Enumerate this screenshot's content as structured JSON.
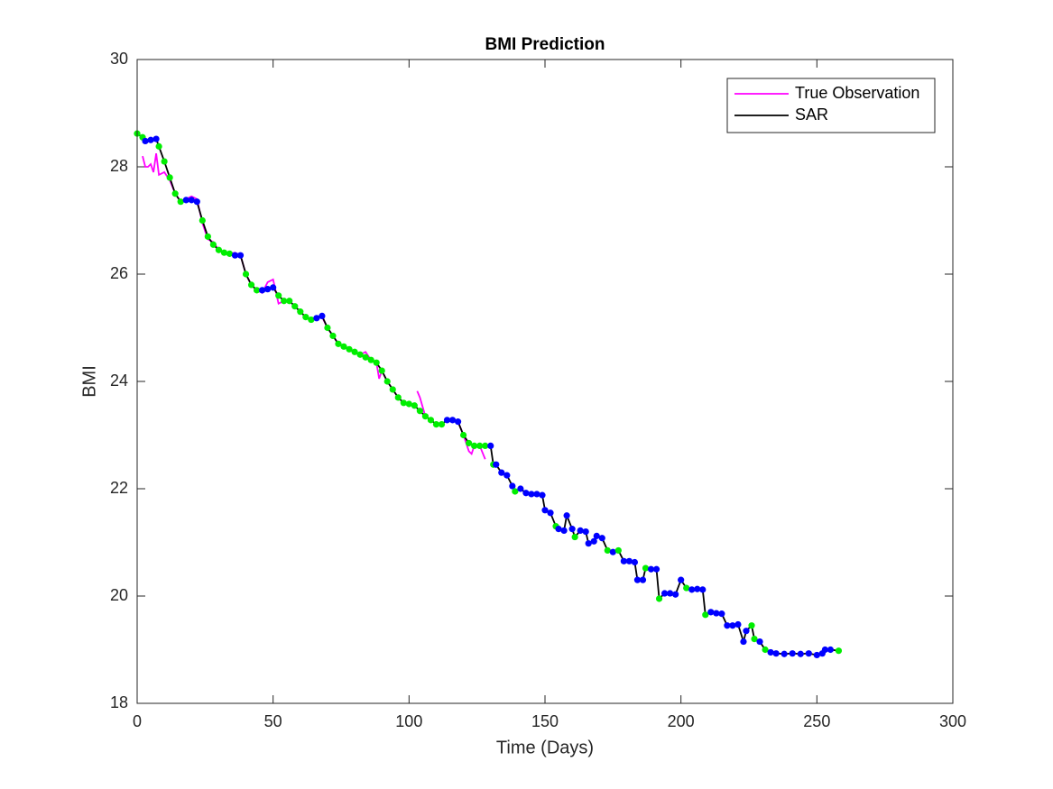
{
  "chart_data": {
    "type": "line",
    "title": "BMI Prediction",
    "xlabel": "Time (Days)",
    "ylabel": "BMI",
    "xlim": [
      0,
      300
    ],
    "xticks": [
      0,
      50,
      100,
      150,
      200,
      250,
      300
    ],
    "ylim": [
      18,
      30
    ],
    "yticks": [
      18,
      20,
      22,
      24,
      26,
      28,
      30
    ],
    "grid": false,
    "legend": "northeast",
    "series": [
      {
        "name": "True Observation",
        "color": "#ff00ff",
        "x": [
          2,
          3,
          4,
          5,
          6,
          7,
          8,
          10,
          12,
          14,
          16,
          18,
          20,
          22,
          24,
          26,
          28,
          30,
          32,
          34,
          36,
          38,
          40,
          42,
          44,
          46,
          48,
          50,
          52,
          54,
          56,
          58,
          60,
          62,
          64,
          66,
          68,
          70,
          72,
          74,
          76,
          78,
          80,
          82,
          84,
          86,
          88,
          89,
          90,
          92,
          94,
          96,
          98,
          100,
          102,
          103,
          104,
          106,
          108,
          110,
          112,
          114,
          116,
          118,
          120,
          122,
          123,
          124,
          126,
          128
        ],
        "values": [
          28.2,
          28.0,
          28.0,
          28.05,
          27.9,
          28.25,
          27.85,
          27.9,
          27.75,
          27.5,
          27.35,
          27.4,
          27.45,
          27.4,
          26.95,
          26.65,
          26.6,
          26.45,
          26.4,
          26.38,
          26.4,
          26.35,
          26.0,
          25.8,
          25.7,
          25.65,
          25.85,
          25.9,
          25.45,
          25.5,
          25.5,
          25.4,
          25.3,
          25.2,
          25.15,
          25.2,
          25.2,
          25.0,
          24.85,
          24.7,
          24.65,
          24.6,
          24.55,
          24.5,
          24.55,
          24.4,
          24.35,
          24.05,
          24.2,
          24.0,
          23.85,
          23.7,
          23.6,
          23.58,
          null,
          23.82,
          23.7,
          23.35,
          23.28,
          23.2,
          23.2,
          23.28,
          23.28,
          23.25,
          23.0,
          22.7,
          22.65,
          22.8,
          22.8,
          22.55
        ]
      },
      {
        "name": "SAR",
        "color": "#000000",
        "x": [
          0,
          2,
          3,
          5,
          7,
          8,
          10,
          12,
          14,
          16,
          18,
          20,
          22,
          24,
          26,
          28,
          30,
          32,
          34,
          36,
          38,
          40,
          42,
          44,
          46,
          48,
          50,
          52,
          54,
          56,
          58,
          60,
          62,
          64,
          66,
          68,
          70,
          72,
          74,
          76,
          78,
          80,
          82,
          84,
          86,
          88,
          90,
          92,
          94,
          96,
          98,
          100,
          102,
          104,
          106,
          108,
          110,
          112,
          114,
          116,
          118,
          120,
          122,
          124,
          126,
          128,
          130,
          131,
          132,
          134,
          136,
          138,
          139,
          141,
          143,
          145,
          147,
          149,
          150,
          152,
          154,
          155,
          157,
          158,
          160,
          161,
          163,
          165,
          166,
          168,
          169,
          171,
          173,
          175,
          177,
          179,
          181,
          183,
          184,
          186,
          187,
          189,
          191,
          192,
          194,
          196,
          198,
          200,
          202,
          204,
          206,
          208,
          209,
          211,
          213,
          215,
          217,
          219,
          221,
          223,
          224,
          226,
          227,
          229,
          231,
          233,
          235,
          238,
          241,
          244,
          247,
          250,
          252,
          253,
          255,
          258
        ],
        "values": [
          28.62,
          28.55,
          28.48,
          28.5,
          28.52,
          28.38,
          28.1,
          27.8,
          27.5,
          27.35,
          27.38,
          27.38,
          27.35,
          27.0,
          26.7,
          26.55,
          26.45,
          26.4,
          26.38,
          26.35,
          26.35,
          26.0,
          25.8,
          25.7,
          25.7,
          25.72,
          25.75,
          25.6,
          25.5,
          25.5,
          25.4,
          25.3,
          25.2,
          25.15,
          25.18,
          25.22,
          25.0,
          24.85,
          24.7,
          24.65,
          24.6,
          24.55,
          24.5,
          24.45,
          24.4,
          24.35,
          24.2,
          24.0,
          23.85,
          23.7,
          23.6,
          23.58,
          23.55,
          23.45,
          23.35,
          23.28,
          23.2,
          23.2,
          23.28,
          23.28,
          23.25,
          23.0,
          22.85,
          22.8,
          22.8,
          22.8,
          22.8,
          22.45,
          22.45,
          22.3,
          22.25,
          22.05,
          21.95,
          22.0,
          21.92,
          21.9,
          21.9,
          21.88,
          21.6,
          21.55,
          21.3,
          21.25,
          21.22,
          21.5,
          21.25,
          21.1,
          21.22,
          21.2,
          20.98,
          21.02,
          21.12,
          21.08,
          20.85,
          20.82,
          20.85,
          20.65,
          20.65,
          20.63,
          20.3,
          20.3,
          20.52,
          20.5,
          20.5,
          19.95,
          20.05,
          20.05,
          20.03,
          20.3,
          20.15,
          20.12,
          20.13,
          20.12,
          19.65,
          19.7,
          19.68,
          19.67,
          19.45,
          19.45,
          19.47,
          19.15,
          19.35,
          19.45,
          19.2,
          19.15,
          19.0,
          18.95,
          18.93,
          18.92,
          18.93,
          18.92,
          18.93,
          18.9,
          18.93,
          19.0,
          19.0,
          18.98
        ],
        "marker_colors": [
          "#00ee00",
          "#00ee00",
          "#0000ff",
          "#0000ff",
          "#0000ff",
          "#00ee00",
          "#00ee00",
          "#00ee00",
          "#00ee00",
          "#00ee00",
          "#0000ff",
          "#0000ff",
          "#0000ff",
          "#00ee00",
          "#00ee00",
          "#00ee00",
          "#00ee00",
          "#00ee00",
          "#00ee00",
          "#0000ff",
          "#0000ff",
          "#00ee00",
          "#00ee00",
          "#00ee00",
          "#0000ff",
          "#0000ff",
          "#0000ff",
          "#00ee00",
          "#00ee00",
          "#00ee00",
          "#00ee00",
          "#00ee00",
          "#00ee00",
          "#00ee00",
          "#0000ff",
          "#0000ff",
          "#00ee00",
          "#00ee00",
          "#00ee00",
          "#00ee00",
          "#00ee00",
          "#00ee00",
          "#00ee00",
          "#00ee00",
          "#00ee00",
          "#00ee00",
          "#00ee00",
          "#00ee00",
          "#00ee00",
          "#00ee00",
          "#00ee00",
          "#00ee00",
          "#00ee00",
          "#00ee00",
          "#00ee00",
          "#00ee00",
          "#00ee00",
          "#00ee00",
          "#0000ff",
          "#0000ff",
          "#0000ff",
          "#00ee00",
          "#00ee00",
          "#00ee00",
          "#00ee00",
          "#00ee00",
          "#0000ff",
          "#00ee00",
          "#0000ff",
          "#0000ff",
          "#0000ff",
          "#0000ff",
          "#00ee00",
          "#0000ff",
          "#0000ff",
          "#0000ff",
          "#0000ff",
          "#0000ff",
          "#0000ff",
          "#0000ff",
          "#00ee00",
          "#0000ff",
          "#0000ff",
          "#0000ff",
          "#0000ff",
          "#00ee00",
          "#0000ff",
          "#0000ff",
          "#0000ff",
          "#0000ff",
          "#0000ff",
          "#0000ff",
          "#00ee00",
          "#0000ff",
          "#00ee00",
          "#0000ff",
          "#0000ff",
          "#0000ff",
          "#0000ff",
          "#0000ff",
          "#00ee00",
          "#0000ff",
          "#0000ff",
          "#00ee00",
          "#0000ff",
          "#0000ff",
          "#0000ff",
          "#0000ff",
          "#00ee00",
          "#0000ff",
          "#0000ff",
          "#0000ff",
          "#00ee00",
          "#0000ff",
          "#0000ff",
          "#0000ff",
          "#0000ff",
          "#0000ff",
          "#0000ff",
          "#0000ff",
          "#0000ff",
          "#00ee00",
          "#00ee00",
          "#0000ff",
          "#00ee00",
          "#0000ff",
          "#0000ff",
          "#0000ff",
          "#0000ff",
          "#0000ff",
          "#0000ff",
          "#0000ff",
          "#0000ff",
          "#0000ff",
          "#0000ff",
          "#00ee00"
        ]
      }
    ]
  }
}
